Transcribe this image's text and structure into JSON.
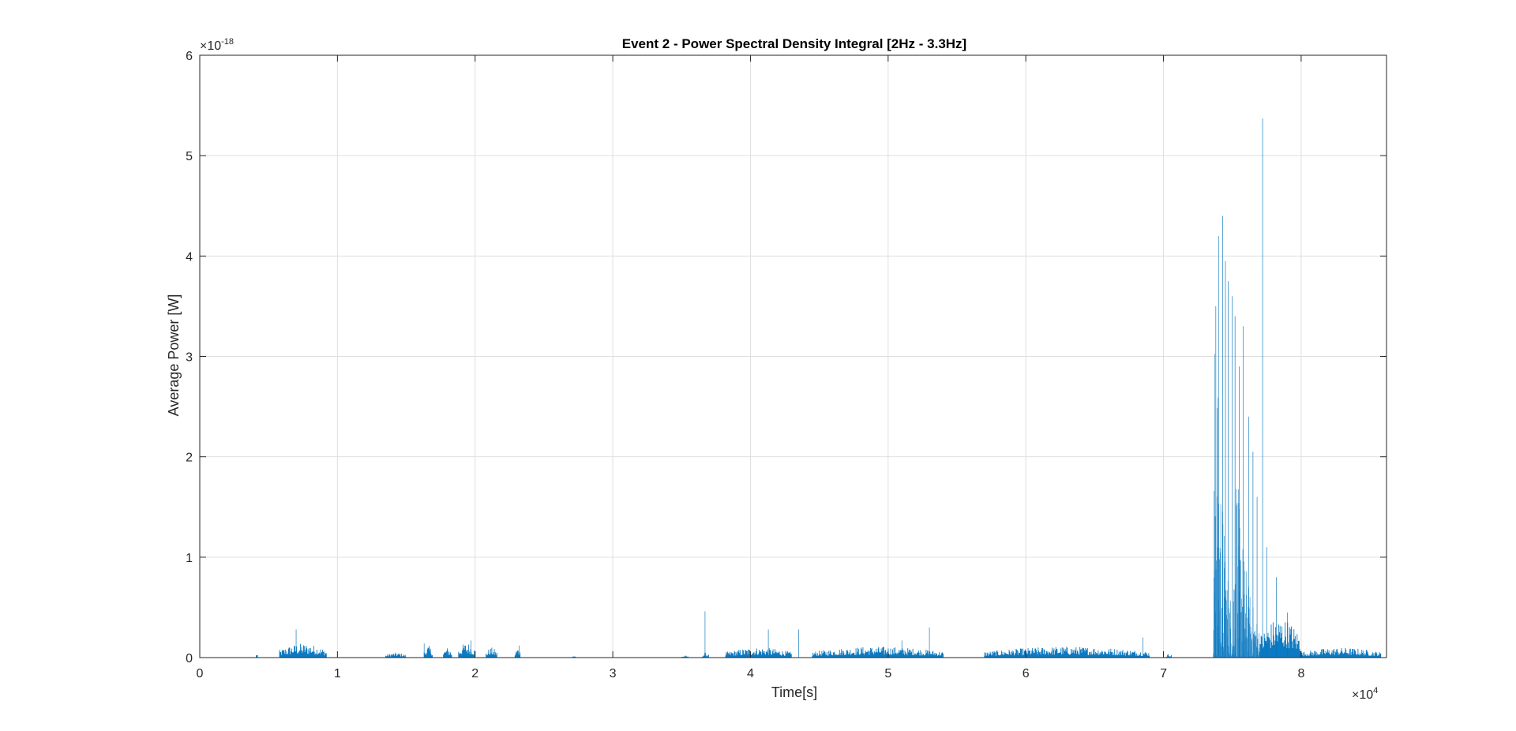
{
  "chart_data": {
    "type": "area",
    "title": "Event 2 - Power Spectral Density Integral [2Hz - 3.3Hz]",
    "xlabel": "Time[s]",
    "ylabel": "Average Power [W]",
    "x_multiplier_label": "×10",
    "x_multiplier_exp": "4",
    "y_multiplier_label": "×10",
    "y_multiplier_exp": "-18",
    "xlim": [
      0,
      8.62
    ],
    "ylim": [
      0,
      6
    ],
    "grid": true,
    "x_ticks": [
      0,
      1,
      2,
      3,
      4,
      5,
      6,
      7,
      8
    ],
    "x_tick_labels": [
      "0",
      "1",
      "2",
      "3",
      "4",
      "5",
      "6",
      "7",
      "8"
    ],
    "y_ticks": [
      0,
      1,
      2,
      3,
      4,
      5,
      6
    ],
    "y_tick_labels": [
      "0",
      "1",
      "2",
      "3",
      "4",
      "5",
      "6"
    ],
    "series_color": "#0072BD",
    "series": [
      {
        "name": "Average Power",
        "x_units": "×10^4 s",
        "y_units": "×10^-18 W",
        "bursts": [
          {
            "start": 0.41,
            "end": 0.42,
            "peak": 0.06
          },
          {
            "start": 0.58,
            "end": 0.92,
            "peak": 0.14
          },
          {
            "start": 1.35,
            "end": 1.5,
            "peak": 0.05
          },
          {
            "start": 1.63,
            "end": 1.69,
            "peak": 0.12
          },
          {
            "start": 1.77,
            "end": 1.83,
            "peak": 0.1
          },
          {
            "start": 1.88,
            "end": 2.0,
            "peak": 0.15
          },
          {
            "start": 2.08,
            "end": 2.16,
            "peak": 0.1
          },
          {
            "start": 2.29,
            "end": 2.33,
            "peak": 0.1
          },
          {
            "start": 2.7,
            "end": 2.73,
            "peak": 0.02
          },
          {
            "start": 3.5,
            "end": 3.55,
            "peak": 0.02
          },
          {
            "start": 3.65,
            "end": 3.7,
            "peak": 0.05
          },
          {
            "start": 3.82,
            "end": 4.3,
            "peak": 0.1
          },
          {
            "start": 4.45,
            "end": 5.4,
            "peak": 0.11
          },
          {
            "start": 5.7,
            "end": 6.9,
            "peak": 0.11
          },
          {
            "start": 7.02,
            "end": 7.06,
            "peak": 0.04
          },
          {
            "start": 7.36,
            "end": 7.5,
            "peak": 3.8
          },
          {
            "start": 7.5,
            "end": 7.7,
            "peak": 2.2
          },
          {
            "start": 7.7,
            "end": 8.0,
            "peak": 0.4
          },
          {
            "start": 8.0,
            "end": 8.58,
            "peak": 0.1
          }
        ],
        "peaks": [
          {
            "x": 0.7,
            "y": 0.28
          },
          {
            "x": 1.63,
            "y": 0.14
          },
          {
            "x": 1.97,
            "y": 0.17
          },
          {
            "x": 2.32,
            "y": 0.12
          },
          {
            "x": 3.67,
            "y": 0.46
          },
          {
            "x": 4.13,
            "y": 0.28
          },
          {
            "x": 4.35,
            "y": 0.28
          },
          {
            "x": 5.1,
            "y": 0.17
          },
          {
            "x": 5.3,
            "y": 0.3
          },
          {
            "x": 6.85,
            "y": 0.2
          },
          {
            "x": 7.38,
            "y": 3.5
          },
          {
            "x": 7.4,
            "y": 4.2
          },
          {
            "x": 7.43,
            "y": 4.4
          },
          {
            "x": 7.45,
            "y": 3.95
          },
          {
            "x": 7.47,
            "y": 3.75
          },
          {
            "x": 7.5,
            "y": 3.6
          },
          {
            "x": 7.52,
            "y": 3.4
          },
          {
            "x": 7.55,
            "y": 2.9
          },
          {
            "x": 7.58,
            "y": 3.3
          },
          {
            "x": 7.62,
            "y": 2.4
          },
          {
            "x": 7.65,
            "y": 2.05
          },
          {
            "x": 7.68,
            "y": 1.6
          },
          {
            "x": 7.72,
            "y": 5.37
          },
          {
            "x": 7.75,
            "y": 1.1
          },
          {
            "x": 7.82,
            "y": 0.8
          },
          {
            "x": 7.9,
            "y": 0.45
          }
        ]
      }
    ]
  }
}
